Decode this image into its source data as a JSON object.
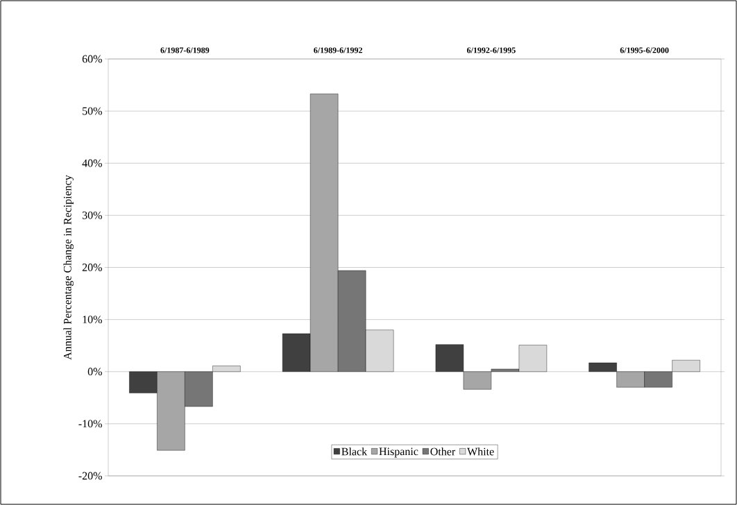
{
  "chart_data": {
    "type": "bar",
    "ylabel": "Annual Percentage Change in Recipiency",
    "categories": [
      "6/1987-6/1989",
      "6/1989-6/1992",
      "6/1992-6/1995",
      "6/1995-6/2000"
    ],
    "series": [
      {
        "name": "Black",
        "color": "#404040",
        "values": [
          -4.1,
          7.3,
          5.2,
          1.7
        ]
      },
      {
        "name": "Hispanic",
        "color": "#a6a6a6",
        "values": [
          -15.1,
          53.3,
          -3.4,
          -3.0
        ]
      },
      {
        "name": "Other",
        "color": "#767676",
        "values": [
          -6.7,
          19.4,
          0.5,
          -3.0
        ]
      },
      {
        "name": "White",
        "color": "#d9d9d9",
        "values": [
          1.1,
          8.0,
          5.1,
          2.2
        ]
      }
    ],
    "ylim": [
      -20,
      60
    ],
    "yticks": [
      {
        "value": -20,
        "label": "-20%"
      },
      {
        "value": -10,
        "label": "-10%"
      },
      {
        "value": 0,
        "label": "0%"
      },
      {
        "value": 10,
        "label": "10%"
      },
      {
        "value": 20,
        "label": "20%"
      },
      {
        "value": 30,
        "label": "30%"
      },
      {
        "value": 40,
        "label": "40%"
      },
      {
        "value": 50,
        "label": "50%"
      },
      {
        "value": 60,
        "label": "60%"
      }
    ],
    "grid": "y",
    "legend": "bottom"
  }
}
